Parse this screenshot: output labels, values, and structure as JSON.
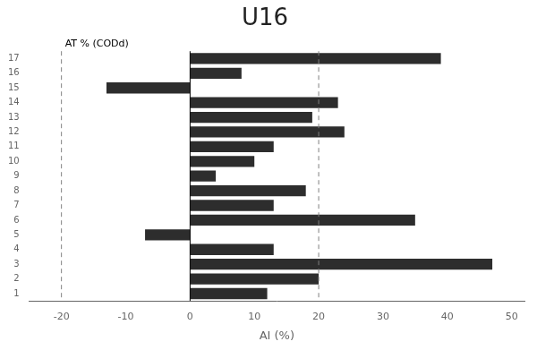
{
  "chart_data": {
    "type": "bar",
    "orientation": "horizontal",
    "title": "U16",
    "x_label": "AI (%)",
    "categories": [
      "1",
      "2",
      "3",
      "4",
      "5",
      "6",
      "7",
      "8",
      "9",
      "10",
      "11",
      "12",
      "13",
      "14",
      "15",
      "16",
      "17"
    ],
    "values": [
      12,
      20,
      47,
      13,
      -7,
      35,
      13,
      18,
      4,
      10,
      13,
      24,
      19,
      23,
      -13,
      8,
      39
    ],
    "color": "#2d2d2d",
    "xlim": [
      -25,
      52
    ],
    "xticks": [
      -20,
      -10,
      0,
      10,
      20,
      30,
      40,
      50
    ],
    "vlines": [
      {
        "x": 0,
        "line_style": "solid"
      },
      {
        "x": -20,
        "line_style": "dashed"
      },
      {
        "x": 20,
        "line_style": "dashed"
      }
    ],
    "annotations": [
      {
        "text": "AT % (CODd)",
        "x": -20
      }
    ],
    "grid": false,
    "legend": false
  }
}
